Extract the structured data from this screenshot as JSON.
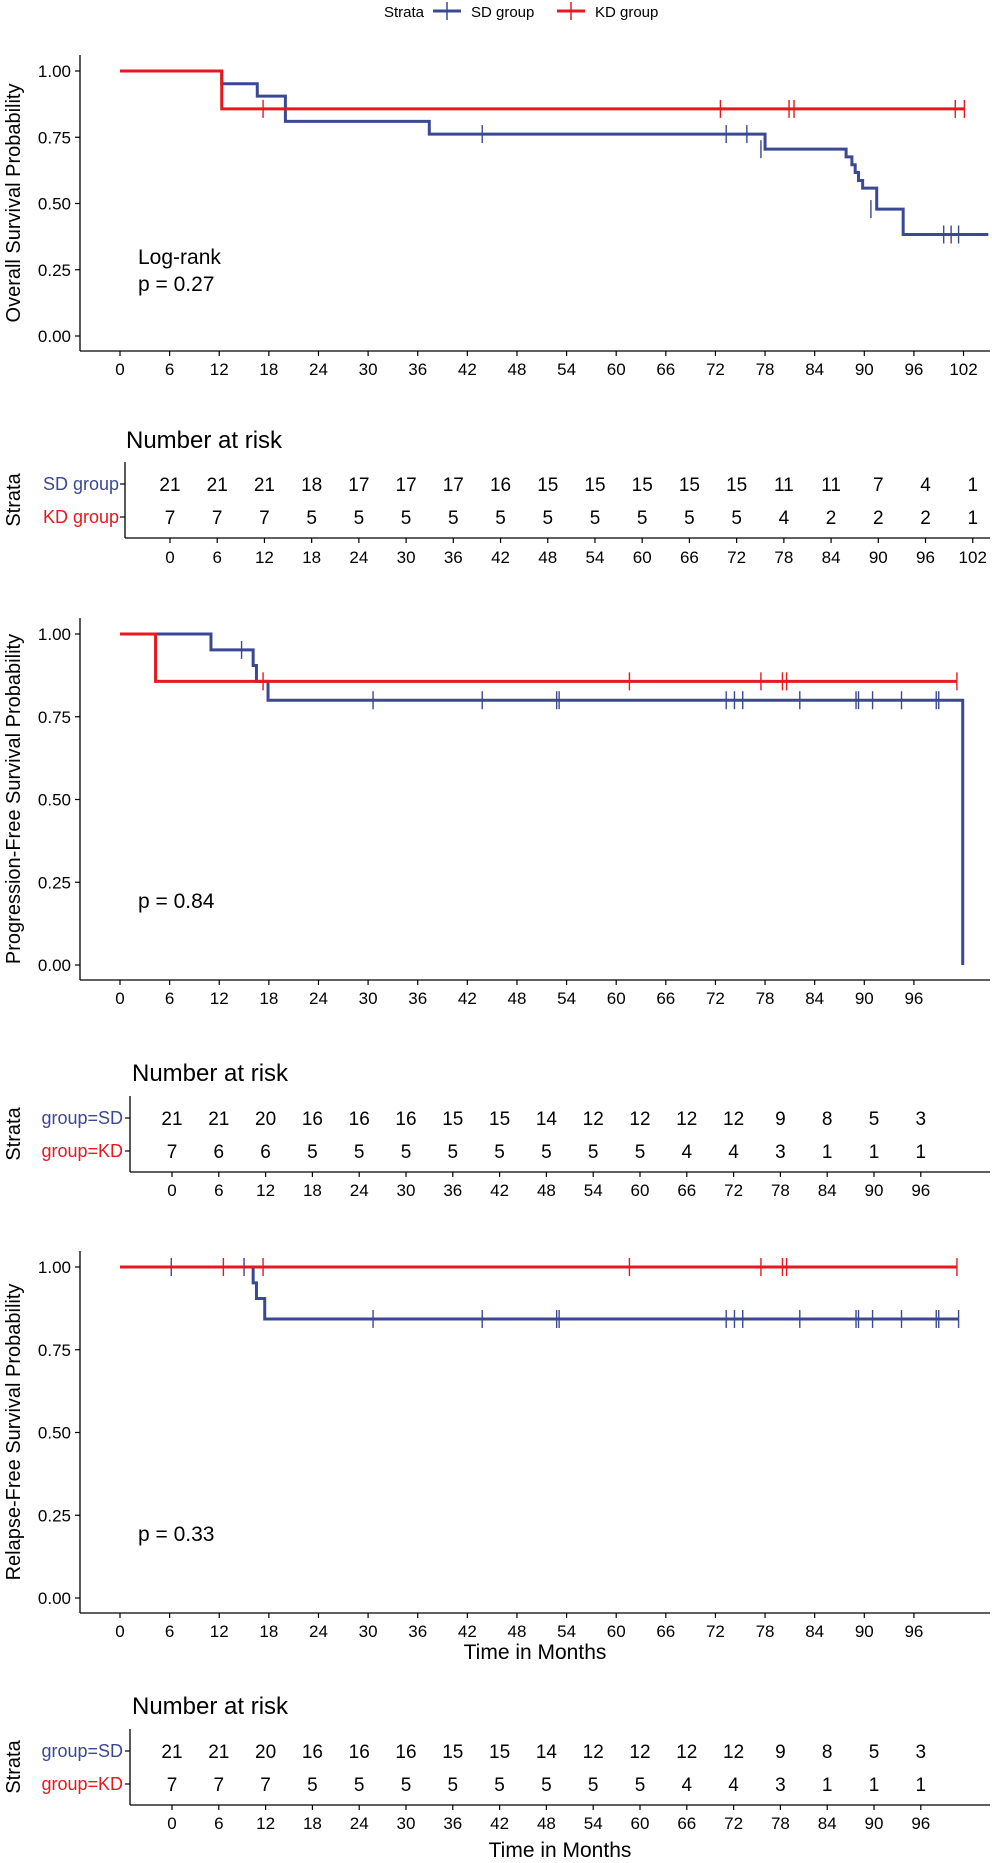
{
  "legend": {
    "title": "Strata",
    "items": [
      {
        "label": "SD group",
        "color": "#3B4994"
      },
      {
        "label": "KD group",
        "color": "#E7191F"
      }
    ]
  },
  "chart_data": [
    {
      "type": "line",
      "subtype": "kaplan-meier",
      "ylabel": "Overall Survival Probability",
      "xlabel": "",
      "annotation": [
        "Log-rank",
        "p = 0.27"
      ],
      "xlim": [
        0,
        105
      ],
      "ylim": [
        0,
        1
      ],
      "xticks": [
        0,
        6,
        12,
        18,
        24,
        30,
        36,
        42,
        48,
        54,
        60,
        66,
        72,
        78,
        84,
        90,
        96,
        102
      ],
      "yticks": [
        0,
        0.25,
        0.5,
        0.75,
        1.0
      ],
      "ytick_labels": [
        "0.00",
        "0.25",
        "0.50",
        "0.75",
        "1.00"
      ],
      "series": [
        {
          "name": "SD group",
          "color": "#3B4994",
          "steps": [
            [
              0,
              1.0
            ],
            [
              12.3,
              0.952
            ],
            [
              16.6,
              0.905
            ],
            [
              20.0,
              0.81
            ],
            [
              37.4,
              0.762
            ],
            [
              78.0,
              0.705
            ],
            [
              87.8,
              0.676
            ],
            [
              88.5,
              0.646
            ],
            [
              88.9,
              0.617
            ],
            [
              89.3,
              0.587
            ],
            [
              89.8,
              0.558
            ],
            [
              91.5,
              0.479
            ],
            [
              94.7,
              0.383
            ],
            [
              105,
              0.383
            ]
          ],
          "censors": [
            [
              43.8,
              0.762
            ],
            [
              73.3,
              0.762
            ],
            [
              75.8,
              0.762
            ],
            [
              77.5,
              0.705
            ],
            [
              90.8,
              0.479
            ],
            [
              99.6,
              0.383
            ],
            [
              100.5,
              0.383
            ],
            [
              101.4,
              0.383
            ]
          ]
        },
        {
          "name": "KD group",
          "color": "#E7191F",
          "steps": [
            [
              0,
              1.0
            ],
            [
              12.3,
              0.857
            ],
            [
              102.1,
              0.857
            ]
          ],
          "censors": [
            [
              17.3,
              0.857
            ],
            [
              72.6,
              0.857
            ],
            [
              80.9,
              0.857
            ],
            [
              81.5,
              0.857
            ],
            [
              101.0,
              0.857
            ],
            [
              102.1,
              0.857
            ]
          ]
        }
      ]
    },
    {
      "type": "table",
      "title": "Number at risk",
      "ylabel": "Strata",
      "rows": [
        {
          "label": "SD group",
          "color": "#3B4994",
          "values": [
            "21",
            "21",
            "21",
            "18",
            "17",
            "17",
            "17",
            "16",
            "15",
            "15",
            "15",
            "15",
            "15",
            "11",
            "11",
            "7",
            "4",
            "1"
          ]
        },
        {
          "label": "KD group",
          "color": "#E7191F",
          "values": [
            "7",
            "7",
            "7",
            "5",
            "5",
            "5",
            "5",
            "5",
            "5",
            "5",
            "5",
            "5",
            "5",
            "4",
            "2",
            "2",
            "2",
            "1"
          ]
        }
      ],
      "xticks": [
        "0",
        "6",
        "12",
        "18",
        "24",
        "30",
        "36",
        "42",
        "48",
        "54",
        "60",
        "66",
        "72",
        "78",
        "84",
        "90",
        "96",
        "102"
      ],
      "xlim": [
        -6,
        105
      ]
    },
    {
      "type": "line",
      "subtype": "kaplan-meier",
      "ylabel": "Progression-Free Survival Probability",
      "xlabel": "",
      "annotation": [
        "p = 0.84"
      ],
      "xlim": [
        0,
        105
      ],
      "ylim": [
        0,
        1
      ],
      "xticks": [
        0,
        6,
        12,
        18,
        24,
        30,
        36,
        42,
        48,
        54,
        60,
        66,
        72,
        78,
        84,
        90,
        96
      ],
      "yticks": [
        0,
        0.25,
        0.5,
        0.75,
        1.0
      ],
      "ytick_labels": [
        "0.00",
        "0.25",
        "0.50",
        "0.75",
        "1.00"
      ],
      "series": [
        {
          "name": "SD group",
          "color": "#3B4994",
          "steps": [
            [
              0,
              1.0
            ],
            [
              11.0,
              0.952
            ],
            [
              16.1,
              0.905
            ],
            [
              16.5,
              0.857
            ],
            [
              17.9,
              0.8
            ],
            [
              101.9,
              0.0
            ]
          ],
          "censors": [
            [
              14.7,
              0.952
            ],
            [
              30.6,
              0.8
            ],
            [
              43.8,
              0.8
            ],
            [
              52.8,
              0.8
            ],
            [
              53.1,
              0.8
            ],
            [
              73.3,
              0.8
            ],
            [
              74.3,
              0.8
            ],
            [
              75.3,
              0.8
            ],
            [
              82.2,
              0.8
            ],
            [
              89.0,
              0.8
            ],
            [
              89.3,
              0.8
            ],
            [
              91.0,
              0.8
            ],
            [
              94.5,
              0.8
            ],
            [
              98.7,
              0.8
            ],
            [
              99.0,
              0.8
            ]
          ]
        },
        {
          "name": "KD group",
          "color": "#E7191F",
          "steps": [
            [
              0,
              1.0
            ],
            [
              4.3,
              0.857
            ],
            [
              101.2,
              0.857
            ]
          ],
          "censors": [
            [
              17.3,
              0.857
            ],
            [
              61.6,
              0.857
            ],
            [
              77.5,
              0.857
            ],
            [
              80.1,
              0.857
            ],
            [
              80.6,
              0.857
            ],
            [
              101.2,
              0.857
            ]
          ]
        }
      ]
    },
    {
      "type": "table",
      "title": "Number at risk",
      "ylabel": "Strata",
      "rows": [
        {
          "label": "group=SD",
          "color": "#3B4994",
          "values": [
            "21",
            "21",
            "20",
            "16",
            "16",
            "16",
            "15",
            "15",
            "14",
            "12",
            "12",
            "12",
            "12",
            "9",
            "8",
            "5",
            "3"
          ]
        },
        {
          "label": "group=KD",
          "color": "#E7191F",
          "values": [
            "7",
            "6",
            "6",
            "5",
            "5",
            "5",
            "5",
            "5",
            "5",
            "5",
            "5",
            "4",
            "4",
            "3",
            "1",
            "1",
            "1"
          ]
        }
      ],
      "xticks": [
        "0",
        "6",
        "12",
        "18",
        "24",
        "30",
        "36",
        "42",
        "48",
        "54",
        "60",
        "66",
        "72",
        "78",
        "84",
        "90",
        "96"
      ],
      "xlim": [
        -6,
        105
      ]
    },
    {
      "type": "line",
      "subtype": "kaplan-meier",
      "ylabel": "Relapse-Free Survival Probability",
      "xlabel": "Time in Months",
      "annotation": [
        "p = 0.33"
      ],
      "xlim": [
        0,
        105
      ],
      "ylim": [
        0,
        1
      ],
      "xticks": [
        0,
        6,
        12,
        18,
        24,
        30,
        36,
        42,
        48,
        54,
        60,
        66,
        72,
        78,
        84,
        90,
        96
      ],
      "yticks": [
        0,
        0.25,
        0.5,
        0.75,
        1.0
      ],
      "ytick_labels": [
        "0.00",
        "0.25",
        "0.50",
        "0.75",
        "1.00"
      ],
      "series": [
        {
          "name": "SD group",
          "color": "#3B4994",
          "steps": [
            [
              0,
              1.0
            ],
            [
              16.1,
              0.952
            ],
            [
              16.5,
              0.905
            ],
            [
              17.5,
              0.843
            ],
            [
              101.4,
              0.843
            ]
          ],
          "censors": [
            [
              6.2,
              1.0
            ],
            [
              15.0,
              1.0
            ],
            [
              30.6,
              0.843
            ],
            [
              43.8,
              0.843
            ],
            [
              52.8,
              0.843
            ],
            [
              53.1,
              0.843
            ],
            [
              73.3,
              0.843
            ],
            [
              74.3,
              0.843
            ],
            [
              75.3,
              0.843
            ],
            [
              82.2,
              0.843
            ],
            [
              89.0,
              0.843
            ],
            [
              89.3,
              0.843
            ],
            [
              91.0,
              0.843
            ],
            [
              94.5,
              0.843
            ],
            [
              98.7,
              0.843
            ],
            [
              99.0,
              0.843
            ],
            [
              101.4,
              0.843
            ]
          ]
        },
        {
          "name": "KD group",
          "color": "#E7191F",
          "steps": [
            [
              0,
              1.0
            ],
            [
              101.2,
              1.0
            ]
          ],
          "censors": [
            [
              12.5,
              1.0
            ],
            [
              17.3,
              1.0
            ],
            [
              61.6,
              1.0
            ],
            [
              77.5,
              1.0
            ],
            [
              80.1,
              1.0
            ],
            [
              80.6,
              1.0
            ],
            [
              101.2,
              1.0
            ]
          ]
        }
      ]
    },
    {
      "type": "table",
      "title": "Number at risk",
      "ylabel": "Strata",
      "xlabel": "Time in Months",
      "rows": [
        {
          "label": "group=SD",
          "color": "#3B4994",
          "values": [
            "21",
            "21",
            "20",
            "16",
            "16",
            "16",
            "15",
            "15",
            "14",
            "12",
            "12",
            "12",
            "12",
            "9",
            "8",
            "5",
            "3"
          ]
        },
        {
          "label": "group=KD",
          "color": "#E7191F",
          "values": [
            "7",
            "7",
            "7",
            "5",
            "5",
            "5",
            "5",
            "5",
            "5",
            "5",
            "5",
            "4",
            "4",
            "3",
            "1",
            "1",
            "1"
          ]
        }
      ],
      "xticks": [
        "0",
        "6",
        "12",
        "18",
        "24",
        "30",
        "36",
        "42",
        "48",
        "54",
        "60",
        "66",
        "72",
        "78",
        "84",
        "90",
        "96"
      ],
      "xlim": [
        -6,
        105
      ]
    }
  ]
}
